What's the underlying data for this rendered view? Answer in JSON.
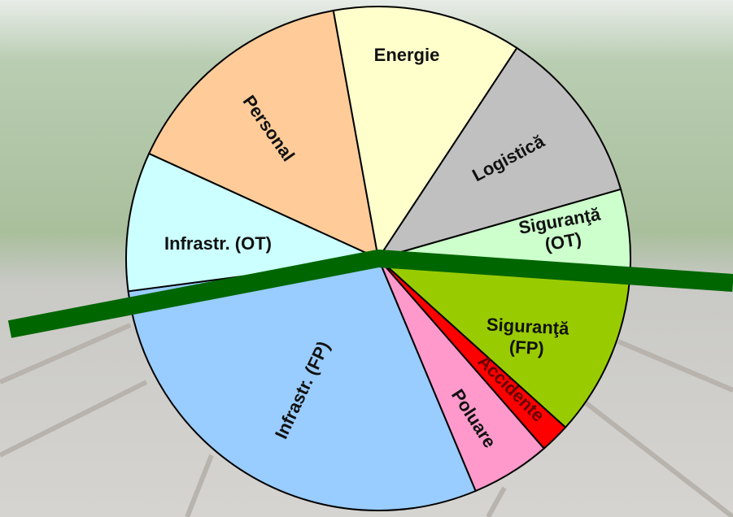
{
  "chart_data": {
    "type": "pie",
    "categories": [
      "Personal",
      "Energie",
      "Logistică",
      "Siguranţă (OT)",
      "Siguranţă (FP)",
      "Accidente",
      "Poluare",
      "Infrastr. (FP)",
      "Infrastr. (OT)"
    ],
    "values": [
      15.3,
      12.1,
      11.3,
      5.1,
      11.0,
      1.9,
      5.1,
      29.2,
      8.9
    ],
    "colors": [
      "#ffcc99",
      "#ffffcc",
      "#c0c0c0",
      "#ccffcc",
      "#99cc00",
      "#ff0000",
      "#ff99cc",
      "#99ccff",
      "#ccffff"
    ]
  }
}
